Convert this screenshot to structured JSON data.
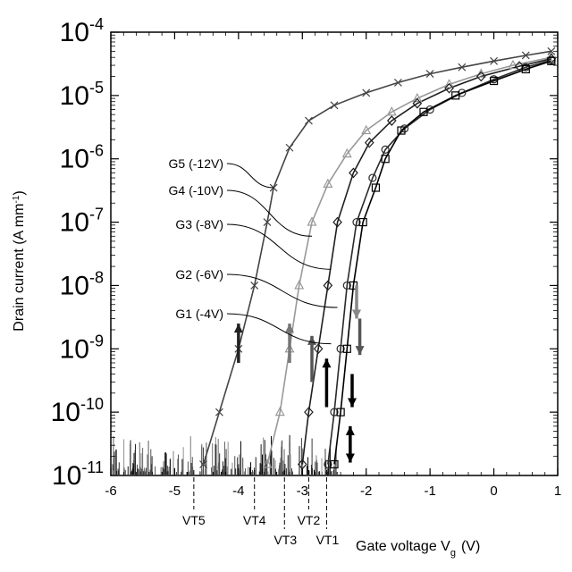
{
  "chart_data": {
    "type": "line",
    "title": "",
    "xlabel": "Gate voltage V",
    "xlabel_sub": "g",
    "xlabel_unit": "(V)",
    "ylabel": "Drain current (A mm",
    "ylabel_sup": "-1",
    "ylabel_close": ")",
    "xlim": [
      -6,
      1
    ],
    "ylim": [
      1e-11,
      0.0001
    ],
    "yscale": "log",
    "grid": false,
    "x_ticks": [
      "-6",
      "-5",
      "-4",
      "-3",
      "-2",
      "-1",
      "0",
      "1"
    ],
    "y_ticks": [
      {
        "base": "10",
        "exp": "-11"
      },
      {
        "base": "10",
        "exp": "-10"
      },
      {
        "base": "10",
        "exp": "-9"
      },
      {
        "base": "10",
        "exp": "-8"
      },
      {
        "base": "10",
        "exp": "-7"
      },
      {
        "base": "10",
        "exp": "-6"
      },
      {
        "base": "10",
        "exp": "-5"
      },
      {
        "base": "10",
        "exp": "-4"
      }
    ],
    "series": [
      {
        "name": "G5 (-12V)",
        "color": "#444444",
        "marker": "x",
        "points": [
          [
            -4.55,
            1.5e-11
          ],
          [
            -4.3,
            1e-10
          ],
          [
            -4.0,
            1e-09
          ],
          [
            -3.75,
            1e-08
          ],
          [
            -3.55,
            1e-07
          ],
          [
            -3.45,
            3.5e-07
          ],
          [
            -3.2,
            1.5e-06
          ],
          [
            -2.9,
            4e-06
          ],
          [
            -2.5,
            7e-06
          ],
          [
            -2.0,
            1.1e-05
          ],
          [
            -1.5,
            1.6e-05
          ],
          [
            -1.0,
            2.2e-05
          ],
          [
            -0.5,
            2.8e-05
          ],
          [
            0.0,
            3.5e-05
          ],
          [
            0.5,
            4.3e-05
          ],
          [
            0.9,
            5e-05
          ]
        ]
      },
      {
        "name": "G4 (-10V)",
        "color": "#999999",
        "marker": "triangle",
        "points": [
          [
            -3.55,
            1.5e-11
          ],
          [
            -3.35,
            1e-10
          ],
          [
            -3.2,
            1e-09
          ],
          [
            -3.05,
            1e-08
          ],
          [
            -2.85,
            1e-07
          ],
          [
            -2.6,
            4e-07
          ],
          [
            -2.3,
            1.2e-06
          ],
          [
            -2.0,
            2.8e-06
          ],
          [
            -1.6,
            5.5e-06
          ],
          [
            -1.2,
            9e-06
          ],
          [
            -0.7,
            1.5e-05
          ],
          [
            -0.2,
            2.2e-05
          ],
          [
            0.3,
            3e-05
          ],
          [
            0.9,
            4e-05
          ]
        ]
      },
      {
        "name": "G3 (-8V)",
        "color": "#1e1e1e",
        "marker": "diamond",
        "points": [
          [
            -3.0,
            1.5e-11
          ],
          [
            -2.9,
            1e-10
          ],
          [
            -2.75,
            1e-09
          ],
          [
            -2.6,
            1e-08
          ],
          [
            -2.45,
            1e-07
          ],
          [
            -2.2,
            6e-07
          ],
          [
            -1.95,
            1.8e-06
          ],
          [
            -1.6,
            4e-06
          ],
          [
            -1.2,
            7.5e-06
          ],
          [
            -0.7,
            1.3e-05
          ],
          [
            -0.2,
            2e-05
          ],
          [
            0.4,
            2.9e-05
          ],
          [
            0.9,
            3.8e-05
          ]
        ]
      },
      {
        "name": "G2 (-6V)",
        "color": "#2a2a2a",
        "marker": "circle",
        "points": [
          [
            -2.6,
            1.5e-11
          ],
          [
            -2.5,
            1e-10
          ],
          [
            -2.4,
            1e-09
          ],
          [
            -2.3,
            1e-08
          ],
          [
            -2.15,
            1e-07
          ],
          [
            -1.9,
            5e-07
          ],
          [
            -1.7,
            1.4e-06
          ],
          [
            -1.4,
            3e-06
          ],
          [
            -1.0,
            6e-06
          ],
          [
            -0.5,
            1.1e-05
          ],
          [
            0.0,
            1.8e-05
          ],
          [
            0.5,
            2.8e-05
          ],
          [
            0.9,
            3.6e-05
          ]
        ]
      },
      {
        "name": "G1 (-4V)",
        "color": "#000000",
        "marker": "square",
        "points": [
          [
            -2.5,
            1.5e-11
          ],
          [
            -2.4,
            1e-10
          ],
          [
            -2.3,
            1e-09
          ],
          [
            -2.2,
            1e-08
          ],
          [
            -2.05,
            1e-07
          ],
          [
            -1.85,
            3.5e-07
          ],
          [
            -1.7,
            1e-06
          ],
          [
            -1.45,
            2.8e-06
          ],
          [
            -1.1,
            5.5e-06
          ],
          [
            -0.6,
            1e-05
          ],
          [
            0.0,
            1.7e-05
          ],
          [
            0.5,
            2.6e-05
          ],
          [
            0.9,
            3.5e-05
          ]
        ]
      }
    ],
    "label_anchor_points": [
      [
        -3.45,
        3.5e-07
      ],
      [
        -2.85,
        6e-08
      ],
      [
        -2.55,
        1.8e-08
      ],
      [
        -2.45,
        4.5e-09
      ],
      [
        -2.55,
        1.2e-09
      ]
    ],
    "arrows": [
      {
        "x": -4.0,
        "y_from": 6e-10,
        "y_to": 2.5e-09,
        "dir": "up",
        "color": "#222222"
      },
      {
        "x": -3.2,
        "y_from": 6e-10,
        "y_to": 2.5e-09,
        "dir": "up",
        "color": "#777777"
      },
      {
        "x": -2.85,
        "y_from": 3e-10,
        "y_to": 1.6e-09,
        "dir": "up",
        "color": "#555555"
      },
      {
        "x": -2.62,
        "y_from": 1.2e-10,
        "y_to": 7e-10,
        "dir": "up",
        "color": "#000000"
      },
      {
        "x": -2.15,
        "y_from": 1e-08,
        "y_to": 3e-09,
        "dir": "down",
        "color": "#888888"
      },
      {
        "x": -2.1,
        "y_from": 3e-09,
        "y_to": 8e-10,
        "dir": "down",
        "color": "#555555"
      },
      {
        "x": -2.22,
        "y_from": 4e-10,
        "y_to": 1.2e-10,
        "dir": "down",
        "color": "#000000"
      },
      {
        "x": -2.25,
        "y_from": 6e-11,
        "y_to": 1.6e-11,
        "dir": "both",
        "color": "#000000"
      }
    ],
    "threshold_lines": [
      {
        "label": "VT5",
        "x": -4.7
      },
      {
        "label": "VT4",
        "x": -3.75
      },
      {
        "label": "VT3",
        "x": -3.28
      },
      {
        "label": "VT2",
        "x": -2.9
      },
      {
        "label": "VT1",
        "x": -2.62
      }
    ]
  }
}
